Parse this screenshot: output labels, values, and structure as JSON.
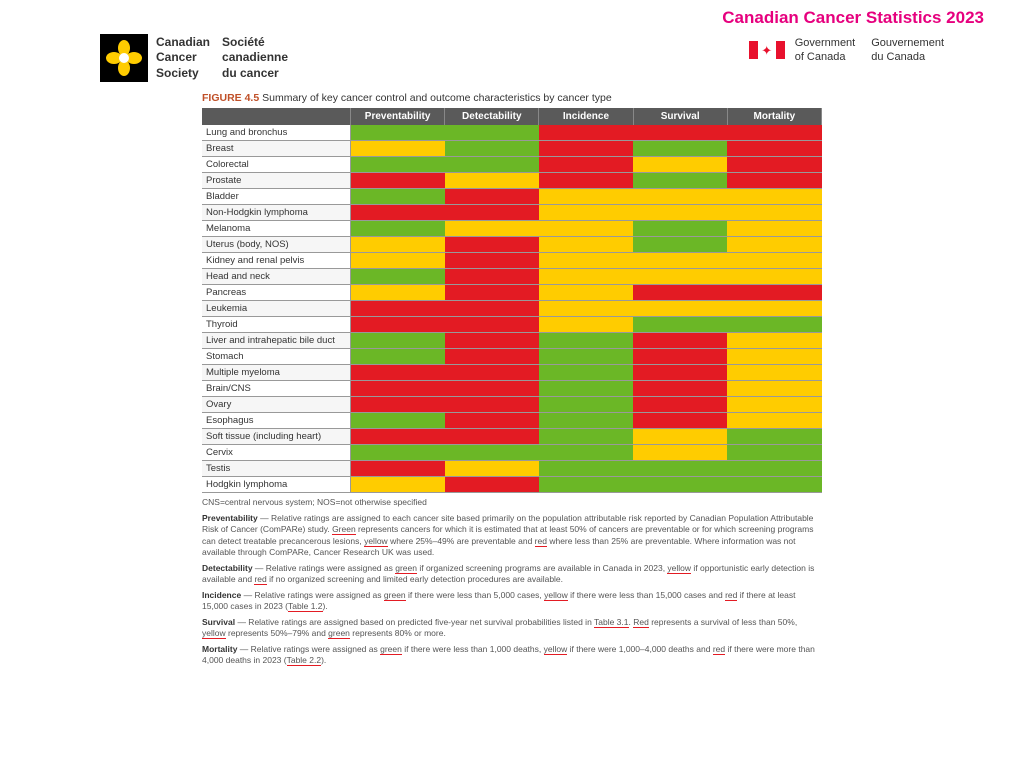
{
  "page_title": "Canadian Cancer Statistics 2023",
  "ccs": {
    "en1": "Canadian",
    "en2": "Cancer",
    "en3": "Society",
    "fr1": "Société",
    "fr2": "canadienne",
    "fr3": "du cancer"
  },
  "gov": {
    "en1": "Government",
    "en2": "of Canada",
    "fr1": "Gouvernement",
    "fr2": "du Canada"
  },
  "figure_label": "FIGURE 4.5",
  "figure_title": "Summary of key cancer control and outcome characteristics by cancer type",
  "columns": [
    "Preventability",
    "Detectability",
    "Incidence",
    "Survival",
    "Mortality"
  ],
  "colors": {
    "green": "#6bb726",
    "yellow": "#ffcc00",
    "red": "#e31b23",
    "header": "#5a5a5a"
  },
  "rows": [
    {
      "label": "Lung and bronchus",
      "c": [
        "g",
        "g",
        "r",
        "r",
        "r"
      ]
    },
    {
      "label": "Breast",
      "c": [
        "y",
        "g",
        "r",
        "g",
        "r"
      ]
    },
    {
      "label": "Colorectal",
      "c": [
        "g",
        "g",
        "r",
        "y",
        "r"
      ]
    },
    {
      "label": "Prostate",
      "c": [
        "r",
        "y",
        "r",
        "g",
        "r"
      ]
    },
    {
      "label": "Bladder",
      "c": [
        "g",
        "r",
        "y",
        "y",
        "y"
      ]
    },
    {
      "label": "Non-Hodgkin lymphoma",
      "c": [
        "r",
        "r",
        "y",
        "y",
        "y"
      ]
    },
    {
      "label": "Melanoma",
      "c": [
        "g",
        "y",
        "y",
        "g",
        "y"
      ]
    },
    {
      "label": "Uterus (body, NOS)",
      "c": [
        "y",
        "r",
        "y",
        "g",
        "y"
      ]
    },
    {
      "label": "Kidney and renal pelvis",
      "c": [
        "y",
        "r",
        "y",
        "y",
        "y"
      ]
    },
    {
      "label": "Head and neck",
      "c": [
        "g",
        "r",
        "y",
        "y",
        "y"
      ]
    },
    {
      "label": "Pancreas",
      "c": [
        "y",
        "r",
        "y",
        "r",
        "r"
      ]
    },
    {
      "label": "Leukemia",
      "c": [
        "r",
        "r",
        "y",
        "y",
        "y"
      ]
    },
    {
      "label": "Thyroid",
      "c": [
        "r",
        "r",
        "y",
        "g",
        "g"
      ]
    },
    {
      "label": "Liver and intrahepatic bile duct",
      "c": [
        "g",
        "r",
        "g",
        "r",
        "y"
      ]
    },
    {
      "label": "Stomach",
      "c": [
        "g",
        "r",
        "g",
        "r",
        "y"
      ]
    },
    {
      "label": "Multiple myeloma",
      "c": [
        "r",
        "r",
        "g",
        "r",
        "y"
      ]
    },
    {
      "label": "Brain/CNS",
      "c": [
        "r",
        "r",
        "g",
        "r",
        "y"
      ]
    },
    {
      "label": "Ovary",
      "c": [
        "r",
        "r",
        "g",
        "r",
        "y"
      ]
    },
    {
      "label": "Esophagus",
      "c": [
        "g",
        "r",
        "g",
        "r",
        "y"
      ]
    },
    {
      "label": "Soft tissue (including heart)",
      "c": [
        "r",
        "r",
        "g",
        "y",
        "g"
      ]
    },
    {
      "label": "Cervix",
      "c": [
        "g",
        "g",
        "g",
        "y",
        "g"
      ]
    },
    {
      "label": "Testis",
      "c": [
        "r",
        "y",
        "g",
        "g",
        "g"
      ]
    },
    {
      "label": "Hodgkin lymphoma",
      "c": [
        "y",
        "r",
        "g",
        "g",
        "g"
      ]
    }
  ],
  "abbrev": "CNS=central nervous system; NOS=not otherwise specified",
  "footnotes": {
    "prevent_label": "Preventability",
    "prevent_text_1": " — Relative ratings are assigned to each cancer site based primarily on the population attributable risk reported by Canadian Population Attributable Risk of Cancer (ComPARe) study. ",
    "prevent_green": "Green",
    "prevent_text_2": " represents cancers for which it is estimated that at least 50% of cancers are preventable or for which screening programs can detect treatable precancerous lesions, ",
    "prevent_yellow": "yellow",
    "prevent_text_3": " where 25%–49% are preventable and ",
    "prevent_red": "red",
    "prevent_text_4": " where less than 25% are preventable. Where information was not available through ComPARe, Cancer Research UK was used.",
    "detect_label": "Detectability",
    "detect_text_1": " — Relative ratings were assigned as ",
    "detect_green": "green",
    "detect_text_2": " if organized screening programs are available in Canada in 2023, ",
    "detect_yellow": "yellow",
    "detect_text_3": " if opportunistic early detection is available and ",
    "detect_red": "red",
    "detect_text_4": " if no organized screening and limited early detection procedures are available.",
    "incid_label": "Incidence",
    "incid_text_1": " — Relative ratings were assigned as ",
    "incid_green": "green",
    "incid_text_2": " if there were less than 5,000 cases, ",
    "incid_yellow": "yellow",
    "incid_text_3": " if there were less than 15,000 cases and ",
    "incid_red": "red",
    "incid_text_4": " if there at least 15,000 cases in 2023 (",
    "incid_link": "Table 1.2",
    "incid_text_5": ").",
    "surv_label": "Survival",
    "surv_text_1": " — Relative ratings are assigned based on predicted five-year net survival probabilities listed in ",
    "surv_link": "Table 3.1",
    "surv_text_2": ". ",
    "surv_red": "Red",
    "surv_text_3": " represents a survival of less than 50%, ",
    "surv_yellow": "yellow",
    "surv_text_4": " represents 50%–79% and ",
    "surv_green": "green",
    "surv_text_5": " represents 80% or more.",
    "mort_label": "Mortality",
    "mort_text_1": " — Relative ratings were assigned as ",
    "mort_green": "green",
    "mort_text_2": " if there were less than 1,000 deaths, ",
    "mort_yellow": "yellow",
    "mort_text_3": " if there were 1,000–4,000 deaths and ",
    "mort_red": "red",
    "mort_text_4": " if there were more than 4,000 deaths in 2023 (",
    "mort_link": "Table 2.2",
    "mort_text_5": ")."
  }
}
